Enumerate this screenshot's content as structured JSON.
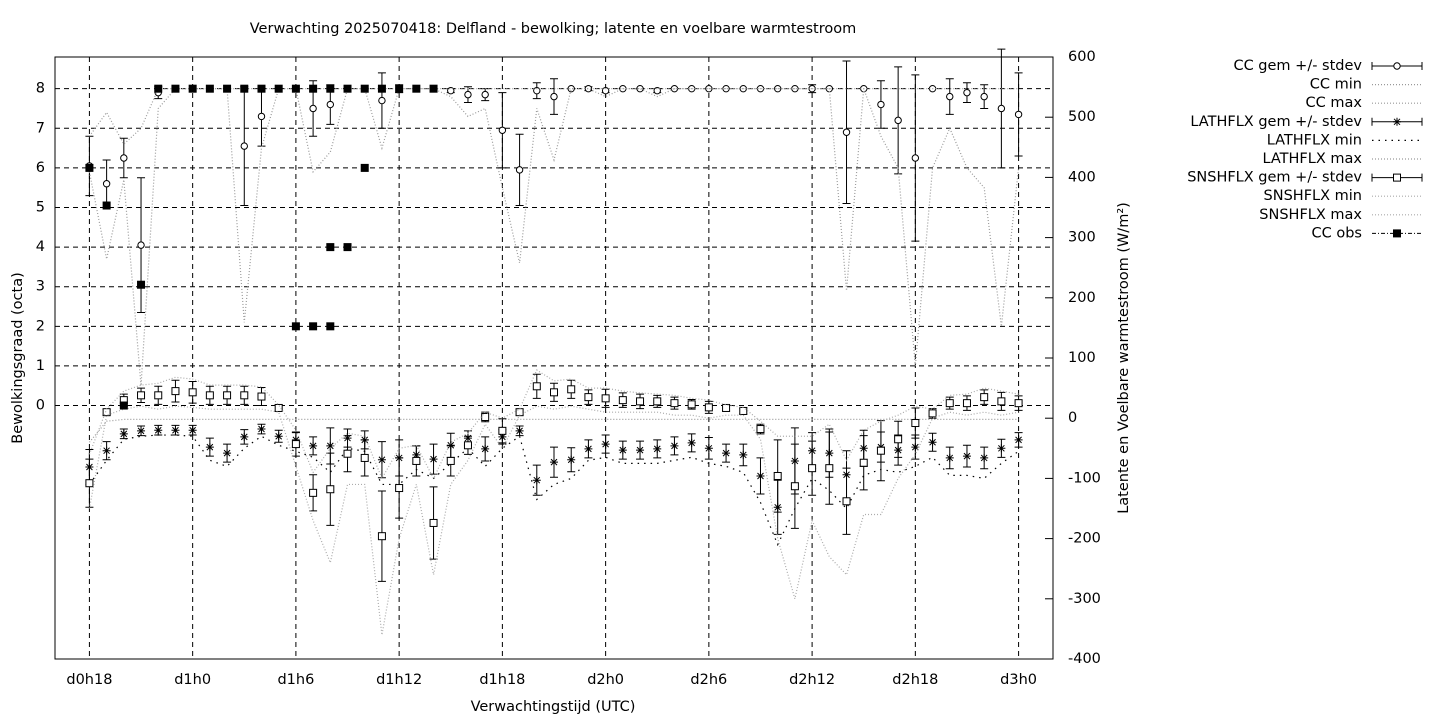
{
  "chart_data": {
    "type": "errorbar",
    "title": "Verwachting 2025070418: Delfland - bewolking; latente en voelbare warmtestroom",
    "xlabel": "Verwachtingstijd (UTC)",
    "ylabel": "Bewolkingsgraad (octa)",
    "y2label": "Latente en Voelbare warmtestroom (W/m²)",
    "grid": true,
    "legend": "right",
    "x": [
      18,
      19,
      20,
      21,
      22,
      23,
      24,
      25,
      26,
      27,
      28,
      29,
      30,
      31,
      32,
      33,
      34,
      35,
      36,
      37,
      38,
      39,
      40,
      41,
      42,
      43,
      44,
      45,
      46,
      47,
      48,
      49,
      50,
      51,
      52,
      53,
      54,
      55,
      56,
      57,
      58,
      59,
      60,
      61,
      62,
      63,
      64,
      65,
      66,
      67,
      68,
      69,
      70,
      71,
      72
    ],
    "xlim": [
      16,
      74
    ],
    "xticks": [
      {
        "value": 18,
        "label": "d0h18"
      },
      {
        "value": 24,
        "label": "d1h0"
      },
      {
        "value": 30,
        "label": "d1h6"
      },
      {
        "value": 36,
        "label": "d1h12"
      },
      {
        "value": 42,
        "label": "d1h18"
      },
      {
        "value": 48,
        "label": "d2h0"
      },
      {
        "value": 54,
        "label": "d2h6"
      },
      {
        "value": 60,
        "label": "d2h12"
      },
      {
        "value": 66,
        "label": "d2h18"
      },
      {
        "value": 72,
        "label": "d3h0"
      }
    ],
    "ylim": [
      -6.4,
      8.8
    ],
    "yticks": [
      0,
      1,
      2,
      3,
      4,
      5,
      6,
      7,
      8
    ],
    "y2lim": [
      -400,
      600
    ],
    "y2ticks": [
      -400,
      -300,
      -200,
      -100,
      0,
      100,
      200,
      300,
      400,
      500,
      600
    ],
    "series": [
      {
        "name": "CC gem +/- stdev",
        "color": "#000000",
        "marker": "circle",
        "axis": "y",
        "values": [
          6.05,
          5.6,
          6.25,
          4.05,
          7.9,
          8,
          8,
          8,
          8,
          6.55,
          7.3,
          8,
          8,
          7.5,
          7.6,
          8,
          8,
          7.7,
          8,
          8,
          8,
          7.95,
          7.85,
          7.85,
          6.95,
          5.95,
          7.95,
          7.8,
          8,
          8,
          7.95,
          8,
          8,
          7.95,
          8,
          8,
          8,
          8,
          8,
          8,
          8,
          8,
          8,
          8,
          6.9,
          8,
          7.6,
          7.2,
          6.25,
          8,
          7.8,
          7.9,
          7.8,
          7.5,
          7.35
        ],
        "errors": [
          0.75,
          0.6,
          0.5,
          1.7,
          0.15,
          0,
          0,
          0,
          0,
          1.5,
          0.75,
          0,
          0,
          0.7,
          0.5,
          0,
          0,
          0.7,
          0.1,
          0,
          0,
          0.05,
          0.2,
          0.15,
          0.95,
          0.9,
          0.2,
          0.45,
          0,
          0.05,
          0.05,
          0,
          0,
          0.05,
          0,
          0,
          0,
          0,
          0,
          0,
          0,
          0,
          0.1,
          0,
          1.8,
          0,
          0.6,
          1.35,
          2.1,
          0,
          0.45,
          0.25,
          0.3,
          1.5,
          1.05
        ]
      },
      {
        "name": "CC min",
        "color": "#999999",
        "line": "dotted",
        "axis": "y",
        "values": [
          5.9,
          3.7,
          5.7,
          0.5,
          7.5,
          8,
          8,
          8,
          8,
          2.1,
          6.5,
          8,
          8,
          5.9,
          6.4,
          8,
          8,
          6.5,
          8,
          8,
          8,
          7.8,
          7.3,
          7.5,
          5.5,
          3.6,
          7.5,
          6.2,
          8,
          8,
          7.8,
          8,
          8,
          7.8,
          8,
          8,
          8,
          8,
          8,
          8,
          8,
          8,
          8,
          8,
          2.9,
          8,
          6.8,
          6,
          1,
          6,
          7,
          6,
          5.5,
          2,
          6
        ]
      },
      {
        "name": "CC max",
        "color": "#999999",
        "line": "dotted",
        "axis": "y",
        "values": [
          6.8,
          7.4,
          6.6,
          7,
          8,
          8,
          8,
          8,
          8,
          8,
          8,
          8,
          8,
          8,
          8,
          8,
          8,
          8,
          8,
          8,
          8,
          8,
          8,
          8,
          8,
          8,
          8,
          8,
          8,
          8,
          8,
          8,
          8,
          8,
          8,
          8,
          8,
          8,
          8,
          8,
          8,
          8,
          8,
          8,
          8,
          8,
          8,
          8,
          8,
          8,
          8,
          8,
          8,
          8,
          8
        ]
      },
      {
        "name": "LATHFLX gem +/- stdev",
        "color": "#000000",
        "marker": "star",
        "axis": "y2",
        "values": [
          -81,
          -54,
          -26,
          -21,
          -20,
          -20,
          -20,
          -48,
          -58,
          -31,
          -18,
          -30,
          -36,
          -46,
          -46,
          -33,
          -36,
          -69,
          -66,
          -61,
          -68,
          -45,
          -33,
          -51,
          -31,
          -21,
          -103,
          -73,
          -69,
          -51,
          -43,
          -53,
          -53,
          -51,
          -46,
          -41,
          -50,
          -58,
          -61,
          -96,
          -148,
          -71,
          -54,
          -58,
          -94,
          -50,
          -48,
          -53,
          -48,
          -40,
          -66,
          -63,
          -66,
          -50,
          -36
        ],
        "errors": [
          29,
          15,
          8,
          8,
          8,
          8,
          8,
          15,
          15,
          12,
          8,
          10,
          12,
          15,
          30,
          15,
          15,
          30,
          30,
          15,
          25,
          20,
          12,
          20,
          12,
          8,
          25,
          25,
          20,
          15,
          15,
          15,
          15,
          15,
          15,
          15,
          18,
          15,
          18,
          30,
          45,
          55,
          30,
          40,
          40,
          30,
          25,
          25,
          20,
          15,
          18,
          18,
          18,
          15,
          12
        ]
      },
      {
        "name": "LATHFLX min",
        "color": "#000000",
        "line": "sparse",
        "axis": "y2",
        "values": [
          -110,
          -70,
          -35,
          -30,
          -28,
          -28,
          -30,
          -70,
          -80,
          -50,
          -30,
          -45,
          -55,
          -65,
          -90,
          -50,
          -55,
          -110,
          -110,
          -85,
          -100,
          -75,
          -50,
          -80,
          -50,
          -30,
          -135,
          -110,
          -100,
          -70,
          -65,
          -75,
          -75,
          -75,
          -70,
          -65,
          -75,
          -80,
          -90,
          -140,
          -210,
          -150,
          -100,
          -120,
          -150,
          -95,
          -85,
          -90,
          -80,
          -65,
          -95,
          -95,
          -100,
          -75,
          -55
        ]
      },
      {
        "name": "LATHFLX max",
        "color": "#999999",
        "line": "dotted",
        "axis": "y2",
        "values": [
          -40,
          -5,
          -2,
          -2,
          -2,
          -2,
          -2,
          -2,
          -2,
          -2,
          -2,
          -2,
          -2,
          -2,
          -2,
          -2,
          -2,
          -2,
          -2,
          -2,
          -2,
          -2,
          -2,
          -2,
          -2,
          -2,
          -2,
          -2,
          -2,
          -2,
          -2,
          -2,
          -2,
          -2,
          -2,
          -2,
          -2,
          -2,
          -2,
          -2,
          -2,
          -2,
          -2,
          -2,
          -2,
          -2,
          -2,
          -2,
          -2,
          -2,
          -2,
          -2,
          -2,
          -2,
          -2
        ]
      },
      {
        "name": "SNSHFLX gem +/- stdev",
        "color": "#000000",
        "marker": "square",
        "axis": "y2",
        "values": [
          -108,
          10,
          30,
          38,
          38,
          45,
          43,
          38,
          38,
          38,
          36,
          17,
          -43,
          -124,
          -118,
          -59,
          -66,
          -196,
          -116,
          -71,
          -174,
          -71,
          -45,
          2,
          -21,
          10,
          53,
          43,
          48,
          35,
          33,
          30,
          28,
          28,
          25,
          23,
          18,
          17,
          12,
          -18,
          -96,
          -113,
          -83,
          -83,
          -138,
          -74,
          -54,
          -35,
          -8,
          8,
          25,
          25,
          35,
          28,
          25
        ],
        "errors": [
          40,
          5,
          10,
          12,
          15,
          18,
          18,
          15,
          15,
          15,
          15,
          5,
          20,
          30,
          60,
          30,
          30,
          75,
          50,
          25,
          60,
          25,
          15,
          8,
          20,
          5,
          20,
          15,
          15,
          12,
          15,
          12,
          12,
          10,
          10,
          8,
          10,
          5,
          5,
          8,
          60,
          70,
          45,
          60,
          55,
          45,
          50,
          30,
          25,
          8,
          10,
          12,
          12,
          15,
          12
        ]
      },
      {
        "name": "SNSHFLX min",
        "color": "#aaaaaa",
        "line": "dotted",
        "axis": "y2",
        "values": [
          -150,
          5,
          15,
          20,
          15,
          20,
          18,
          15,
          15,
          15,
          15,
          10,
          -80,
          -170,
          -240,
          -110,
          -110,
          -360,
          -200,
          -110,
          -260,
          -110,
          -70,
          -10,
          -50,
          5,
          20,
          15,
          20,
          15,
          10,
          10,
          10,
          10,
          5,
          5,
          0,
          5,
          5,
          -35,
          -200,
          -300,
          -170,
          -230,
          -260,
          -160,
          -160,
          -100,
          -60,
          0,
          10,
          5,
          10,
          5,
          10
        ]
      },
      {
        "name": "SNSHFLX max",
        "color": "#aaaaaa",
        "line": "dotted",
        "axis": "y2",
        "values": [
          -60,
          15,
          45,
          55,
          58,
          68,
          65,
          55,
          55,
          55,
          52,
          22,
          -20,
          -90,
          -50,
          -25,
          -30,
          -100,
          -50,
          -45,
          -100,
          -40,
          -25,
          10,
          0,
          15,
          80,
          62,
          65,
          50,
          50,
          45,
          42,
          40,
          38,
          33,
          30,
          22,
          18,
          -5,
          -30,
          -30,
          -30,
          -10,
          -70,
          -20,
          -5,
          5,
          20,
          15,
          38,
          40,
          50,
          45,
          40
        ]
      },
      {
        "name": "CC obs",
        "color": "#000000",
        "marker": "filled-square",
        "axis": "y",
        "x": [
          18,
          19,
          20,
          21,
          22,
          23,
          24,
          25,
          26,
          27,
          28,
          29,
          30,
          30,
          31,
          31,
          32,
          32,
          32,
          33,
          33,
          34,
          34,
          35,
          36,
          37,
          38
        ],
        "values": [
          6,
          5.05,
          0,
          3.05,
          8,
          8,
          8,
          8,
          8,
          8,
          8,
          8,
          8,
          2,
          8,
          2,
          8,
          4,
          2,
          8,
          4,
          8,
          6,
          8,
          8,
          8,
          8
        ]
      }
    ]
  }
}
